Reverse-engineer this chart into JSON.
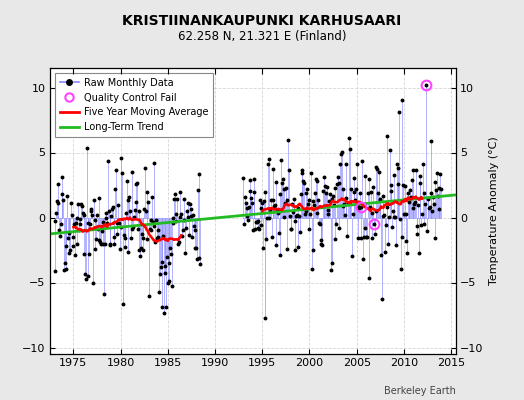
{
  "title": "KRISTIINANKAUPUNKI KARHUSAARI",
  "subtitle": "62.258 N, 21.321 E (Finland)",
  "ylabel": "Temperature Anomaly (°C)",
  "xlabel_credit": "Berkeley Earth",
  "xlim": [
    1972.5,
    2015.5
  ],
  "ylim": [
    -10.5,
    11.5
  ],
  "yticks": [
    -10,
    -5,
    0,
    5,
    10
  ],
  "xticks": [
    1975,
    1980,
    1985,
    1990,
    1995,
    2000,
    2005,
    2010,
    2015
  ],
  "bg_color": "#e8e8e8",
  "plot_bg_color": "#ffffff",
  "stem_color": "#8888ff",
  "dot_color": "#000000",
  "moving_avg_color": "#ff0000",
  "trend_color": "#22bb22",
  "qc_fail_color": "#ff44ff",
  "seed": 17
}
